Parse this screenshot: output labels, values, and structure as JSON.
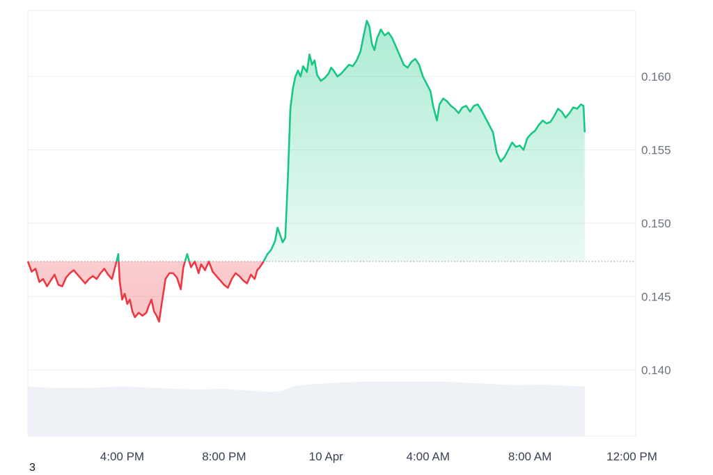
{
  "chart_data": {
    "type": "area",
    "title": "",
    "xlabel": "",
    "ylabel": "",
    "ylim": [
      0.1355,
      0.1645
    ],
    "baseline": 0.1474,
    "y_ticks": [
      0.14,
      0.145,
      0.15,
      0.155,
      0.16
    ],
    "y_tick_labels": [
      "0.140",
      "0.145",
      "0.150",
      "0.155",
      "0.160"
    ],
    "x_ticks": [
      {
        "label": "4:00 PM",
        "t": 4
      },
      {
        "label": "8:00 PM",
        "t": 8
      },
      {
        "label": "10 Apr",
        "t": 12
      },
      {
        "label": "4:00 AM",
        "t": 16
      },
      {
        "label": "8:00 AM",
        "t": 20
      },
      {
        "label": "12:00 PM",
        "t": 24
      }
    ],
    "x_range": [
      0.3,
      24.15
    ],
    "colors": {
      "up_line": "#16c784",
      "down_line": "#ea3943",
      "up_fill": "#16c784",
      "down_fill": "#ea3943",
      "volume": "#eef1f6",
      "grid": "#eeeeee",
      "baseline_dots": "#9ca3af"
    },
    "series": [
      {
        "values": [
          [
            0.3,
            0.1474
          ],
          [
            0.45,
            0.1467
          ],
          [
            0.6,
            0.1469
          ],
          [
            0.75,
            0.146
          ],
          [
            0.9,
            0.1462
          ],
          [
            1.05,
            0.1457
          ],
          [
            1.2,
            0.1461
          ],
          [
            1.35,
            0.1465
          ],
          [
            1.5,
            0.1458
          ],
          [
            1.65,
            0.1457
          ],
          [
            1.8,
            0.1463
          ],
          [
            1.95,
            0.1466
          ],
          [
            2.1,
            0.1468
          ],
          [
            2.25,
            0.1465
          ],
          [
            2.4,
            0.1462
          ],
          [
            2.55,
            0.1459
          ],
          [
            2.7,
            0.1462
          ],
          [
            2.85,
            0.1464
          ],
          [
            3.0,
            0.1462
          ],
          [
            3.15,
            0.1466
          ],
          [
            3.3,
            0.1469
          ],
          [
            3.45,
            0.1465
          ],
          [
            3.6,
            0.1462
          ],
          [
            3.75,
            0.1472
          ],
          [
            3.85,
            0.1479
          ],
          [
            3.9,
            0.1461
          ],
          [
            4.0,
            0.1448
          ],
          [
            4.1,
            0.1452
          ],
          [
            4.2,
            0.1445
          ],
          [
            4.3,
            0.1448
          ],
          [
            4.4,
            0.144
          ],
          [
            4.5,
            0.1436
          ],
          [
            4.65,
            0.1439
          ],
          [
            4.8,
            0.1437
          ],
          [
            4.95,
            0.1439
          ],
          [
            5.05,
            0.1444
          ],
          [
            5.15,
            0.1448
          ],
          [
            5.25,
            0.144
          ],
          [
            5.35,
            0.1437
          ],
          [
            5.45,
            0.1433
          ],
          [
            5.55,
            0.1445
          ],
          [
            5.7,
            0.1462
          ],
          [
            5.85,
            0.1466
          ],
          [
            6.0,
            0.1466
          ],
          [
            6.15,
            0.1463
          ],
          [
            6.3,
            0.1455
          ],
          [
            6.4,
            0.147
          ],
          [
            6.55,
            0.1479
          ],
          [
            6.7,
            0.147
          ],
          [
            6.85,
            0.1474
          ],
          [
            7.0,
            0.1466
          ],
          [
            7.1,
            0.1472
          ],
          [
            7.25,
            0.1468
          ],
          [
            7.4,
            0.1474
          ],
          [
            7.55,
            0.1467
          ],
          [
            7.7,
            0.1464
          ],
          [
            7.85,
            0.1461
          ],
          [
            8.0,
            0.1458
          ],
          [
            8.15,
            0.1456
          ],
          [
            8.3,
            0.1462
          ],
          [
            8.45,
            0.1466
          ],
          [
            8.6,
            0.1464
          ],
          [
            8.75,
            0.1461
          ],
          [
            8.9,
            0.1459
          ],
          [
            9.05,
            0.1465
          ],
          [
            9.2,
            0.1462
          ],
          [
            9.3,
            0.1468
          ],
          [
            9.4,
            0.147
          ],
          [
            9.55,
            0.1474
          ],
          [
            9.7,
            0.1479
          ],
          [
            9.85,
            0.1482
          ],
          [
            10.0,
            0.1488
          ],
          [
            10.1,
            0.1497
          ],
          [
            10.2,
            0.1492
          ],
          [
            10.3,
            0.1487
          ],
          [
            10.4,
            0.149
          ],
          [
            10.5,
            0.153
          ],
          [
            10.6,
            0.1578
          ],
          [
            10.7,
            0.1592
          ],
          [
            10.8,
            0.16
          ],
          [
            10.9,
            0.1604
          ],
          [
            11.0,
            0.16
          ],
          [
            11.1,
            0.1607
          ],
          [
            11.25,
            0.1603
          ],
          [
            11.35,
            0.1615
          ],
          [
            11.45,
            0.1608
          ],
          [
            11.55,
            0.1611
          ],
          [
            11.65,
            0.1601
          ],
          [
            11.8,
            0.1597
          ],
          [
            11.95,
            0.1599
          ],
          [
            12.1,
            0.1602
          ],
          [
            12.2,
            0.1606
          ],
          [
            12.3,
            0.1604
          ],
          [
            12.45,
            0.16
          ],
          [
            12.6,
            0.1602
          ],
          [
            12.75,
            0.1605
          ],
          [
            12.9,
            0.1608
          ],
          [
            13.05,
            0.1607
          ],
          [
            13.2,
            0.1611
          ],
          [
            13.35,
            0.1617
          ],
          [
            13.5,
            0.163
          ],
          [
            13.6,
            0.1638
          ],
          [
            13.7,
            0.1634
          ],
          [
            13.8,
            0.1622
          ],
          [
            13.9,
            0.1618
          ],
          [
            14.0,
            0.1626
          ],
          [
            14.15,
            0.1632
          ],
          [
            14.3,
            0.1628
          ],
          [
            14.45,
            0.163
          ],
          [
            14.6,
            0.1626
          ],
          [
            14.75,
            0.162
          ],
          [
            14.9,
            0.1614
          ],
          [
            15.05,
            0.1608
          ],
          [
            15.2,
            0.1606
          ],
          [
            15.35,
            0.161
          ],
          [
            15.5,
            0.1612
          ],
          [
            15.65,
            0.1608
          ],
          [
            15.8,
            0.16
          ],
          [
            15.95,
            0.1595
          ],
          [
            16.1,
            0.159
          ],
          [
            16.2,
            0.158
          ],
          [
            16.35,
            0.157
          ],
          [
            16.45,
            0.1581
          ],
          [
            16.6,
            0.1585
          ],
          [
            16.75,
            0.1583
          ],
          [
            16.9,
            0.158
          ],
          [
            17.05,
            0.1578
          ],
          [
            17.2,
            0.1575
          ],
          [
            17.35,
            0.1579
          ],
          [
            17.5,
            0.158
          ],
          [
            17.65,
            0.1576
          ],
          [
            17.8,
            0.158
          ],
          [
            17.95,
            0.1581
          ],
          [
            18.1,
            0.1577
          ],
          [
            18.25,
            0.1572
          ],
          [
            18.4,
            0.1567
          ],
          [
            18.55,
            0.1562
          ],
          [
            18.7,
            0.1548
          ],
          [
            18.85,
            0.1542
          ],
          [
            19.0,
            0.1545
          ],
          [
            19.15,
            0.155
          ],
          [
            19.3,
            0.1555
          ],
          [
            19.45,
            0.1552
          ],
          [
            19.6,
            0.1553
          ],
          [
            19.75,
            0.155
          ],
          [
            19.9,
            0.1558
          ],
          [
            20.05,
            0.1561
          ],
          [
            20.2,
            0.1563
          ],
          [
            20.35,
            0.1567
          ],
          [
            20.5,
            0.157
          ],
          [
            20.65,
            0.1568
          ],
          [
            20.8,
            0.1569
          ],
          [
            20.95,
            0.1573
          ],
          [
            21.1,
            0.1578
          ],
          [
            21.25,
            0.1576
          ],
          [
            21.4,
            0.1572
          ],
          [
            21.55,
            0.1575
          ],
          [
            21.7,
            0.1579
          ],
          [
            21.85,
            0.1578
          ],
          [
            22.0,
            0.1581
          ],
          [
            22.1,
            0.158
          ],
          [
            22.15,
            0.1562
          ]
        ]
      }
    ],
    "volume_profile": [
      [
        0.3,
        0.82
      ],
      [
        1.0,
        0.8
      ],
      [
        2.0,
        0.79
      ],
      [
        3.0,
        0.8
      ],
      [
        4.0,
        0.82
      ],
      [
        5.0,
        0.8
      ],
      [
        6.0,
        0.78
      ],
      [
        7.0,
        0.77
      ],
      [
        8.0,
        0.78
      ],
      [
        9.0,
        0.75
      ],
      [
        9.8,
        0.73
      ],
      [
        10.2,
        0.74
      ],
      [
        10.8,
        0.83
      ],
      [
        11.5,
        0.86
      ],
      [
        12.5,
        0.88
      ],
      [
        13.5,
        0.9
      ],
      [
        14.5,
        0.9
      ],
      [
        15.5,
        0.9
      ],
      [
        16.5,
        0.9
      ],
      [
        17.5,
        0.88
      ],
      [
        18.5,
        0.86
      ],
      [
        19.5,
        0.84
      ],
      [
        20.5,
        0.85
      ],
      [
        21.5,
        0.83
      ],
      [
        22.15,
        0.82
      ]
    ],
    "volume_label": "3"
  }
}
